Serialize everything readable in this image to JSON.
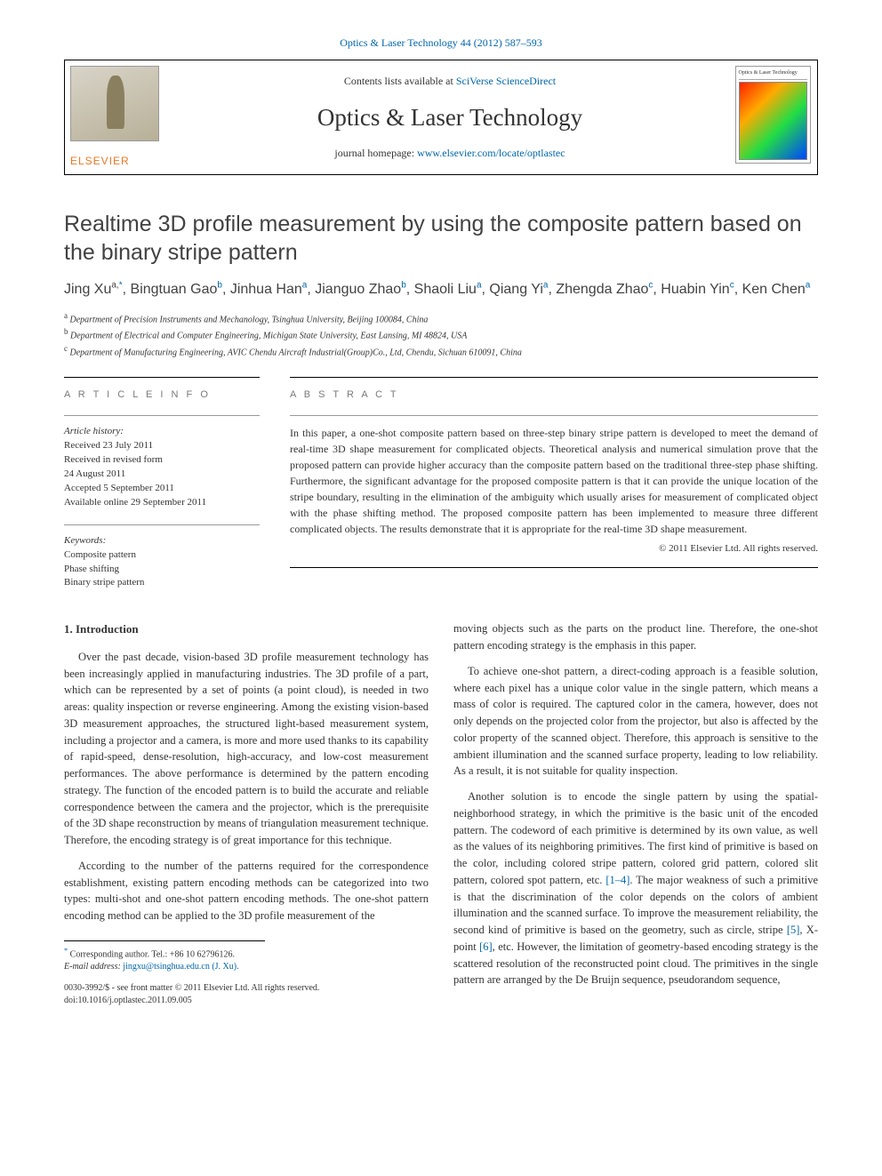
{
  "top_citation": "Optics & Laser Technology 44 (2012) 587–593",
  "header": {
    "contents_prefix": "Contents lists available at ",
    "contents_link": "SciVerse ScienceDirect",
    "journal_name": "Optics & Laser Technology",
    "homepage_prefix": "journal homepage: ",
    "homepage_link": "www.elsevier.com/locate/optlastec",
    "elsevier": "ELSEVIER",
    "cover_label": "Optics & Laser Technology"
  },
  "article": {
    "title": "Realtime 3D profile measurement by using the composite pattern based on the binary stripe pattern",
    "authors_html_parts": [
      {
        "name": "Jing Xu",
        "sup": "a,",
        "star": true
      },
      {
        "name": "Bingtuan Gao",
        "sup": "b"
      },
      {
        "name": "Jinhua Han",
        "sup": "a"
      },
      {
        "name": "Jianguo Zhao",
        "sup": "b"
      },
      {
        "name": "Shaoli Liu",
        "sup": "a"
      },
      {
        "name": "Qiang Yi",
        "sup": "a"
      },
      {
        "name": "Zhengda Zhao",
        "sup": "c"
      },
      {
        "name": "Huabin Yin",
        "sup": "c"
      },
      {
        "name": "Ken Chen",
        "sup": "a"
      }
    ],
    "affiliations": [
      {
        "key": "a",
        "text": "Department of Precision Instruments and Mechanology, Tsinghua University, Beijing 100084, China"
      },
      {
        "key": "b",
        "text": "Department of Electrical and Computer Engineering, Michigan State University, East Lansing, MI 48824, USA"
      },
      {
        "key": "c",
        "text": "Department of Manufacturing Engineering, AVIC Chendu Aircraft Industrial(Group)Co., Ltd, Chendu, Sichuan 610091, China"
      }
    ]
  },
  "info": {
    "heading": "A R T I C L E  I N F O",
    "history_label": "Article history:",
    "history_lines": [
      "Received 23 July 2011",
      "Received in revised form",
      "24 August 2011",
      "Accepted 5 September 2011",
      "Available online 29 September 2011"
    ],
    "keywords_label": "Keywords:",
    "keywords": [
      "Composite pattern",
      "Phase shifting",
      "Binary stripe pattern"
    ]
  },
  "abstract": {
    "heading": "A B S T R A C T",
    "text": "In this paper, a one-shot composite pattern based on three-step binary stripe pattern is developed to meet the demand of real-time 3D shape measurement for complicated objects. Theoretical analysis and numerical simulation prove that the proposed pattern can provide higher accuracy than the composite pattern based on the traditional three-step phase shifting. Furthermore, the significant advantage for the proposed composite pattern is that it can provide the unique location of the stripe boundary, resulting in the elimination of the ambiguity which usually arises for measurement of complicated object with the phase shifting method. The proposed composite pattern has been implemented to measure three different complicated objects. The results demonstrate that it is appropriate for the real-time 3D shape measurement.",
    "copyright": "© 2011 Elsevier Ltd. All rights reserved."
  },
  "body": {
    "section_number": "1.",
    "section_title": "Introduction",
    "left_paragraphs": [
      "Over the past decade, vision-based 3D profile measurement technology has been increasingly applied in manufacturing industries. The 3D profile of a part, which can be represented by a set of points (a point cloud), is needed in two areas: quality inspection or reverse engineering. Among the existing vision-based 3D measurement approaches, the structured light-based measurement system, including a projector and a camera, is more and more used thanks to its capability of rapid-speed, dense-resolution, high-accuracy, and low-cost measurement performances. The above performance is determined by the pattern encoding strategy. The function of the encoded pattern is to build the accurate and reliable correspondence between the camera and the projector, which is the prerequisite of the 3D shape reconstruction by means of triangulation measurement technique. Therefore, the encoding strategy is of great importance for this technique.",
      "According to the number of the patterns required for the correspondence establishment, existing pattern encoding methods can be categorized into two types: multi-shot and one-shot pattern encoding methods. The one-shot pattern encoding method can be applied to the 3D profile measurement of the"
    ],
    "right_paragraphs": [
      "moving objects such as the parts on the product line. Therefore, the one-shot pattern encoding strategy is the emphasis in this paper.",
      "To achieve one-shot pattern, a direct-coding approach is a feasible solution, where each pixel has a unique color value in the single pattern, which means a mass of color is required. The captured color in the camera, however, does not only depends on the projected color from the projector, but also is affected by the color property of the scanned object. Therefore, this approach is sensitive to the ambient illumination and the scanned surface property, leading to low reliability. As a result, it is not suitable for quality inspection.",
      "Another solution is to encode the single pattern by using the spatial-neighborhood strategy, in which the primitive is the basic unit of the encoded pattern. The codeword of each primitive is determined by its own value, as well as the values of its neighboring primitives. The first kind of primitive is based on the color, including colored stripe pattern, colored grid pattern, colored slit pattern, colored spot pattern, etc. [1–4]. The major weakness of such a primitive is that the discrimination of the color depends on the colors of ambient illumination and the scanned surface. To improve the measurement reliability, the second kind of primitive is based on the geometry, such as circle, stripe [5], X-point [6], etc. However, the limitation of geometry-based encoding strategy is the scattered resolution of the reconstructed point cloud. The primitives in the single pattern are arranged by the De Bruijn sequence, pseudorandom sequence,"
    ],
    "refs": {
      "r1": "[1–4]",
      "r2": "[5]",
      "r3": "[6]"
    }
  },
  "footnote": {
    "corresponding": "Corresponding author. Tel.: +86 10 62796126.",
    "email_label": "E-mail address:",
    "email": "jingxu@tsinghua.edu.cn (J. Xu)."
  },
  "bottom": {
    "line1": "0030-3992/$ - see front matter © 2011 Elsevier Ltd. All rights reserved.",
    "line2": "doi:10.1016/j.optlastec.2011.09.005"
  },
  "colors": {
    "link": "#0066aa",
    "elsevier_orange": "#ee7722",
    "heading_gray": "#7a7a7a",
    "text": "#333333"
  }
}
